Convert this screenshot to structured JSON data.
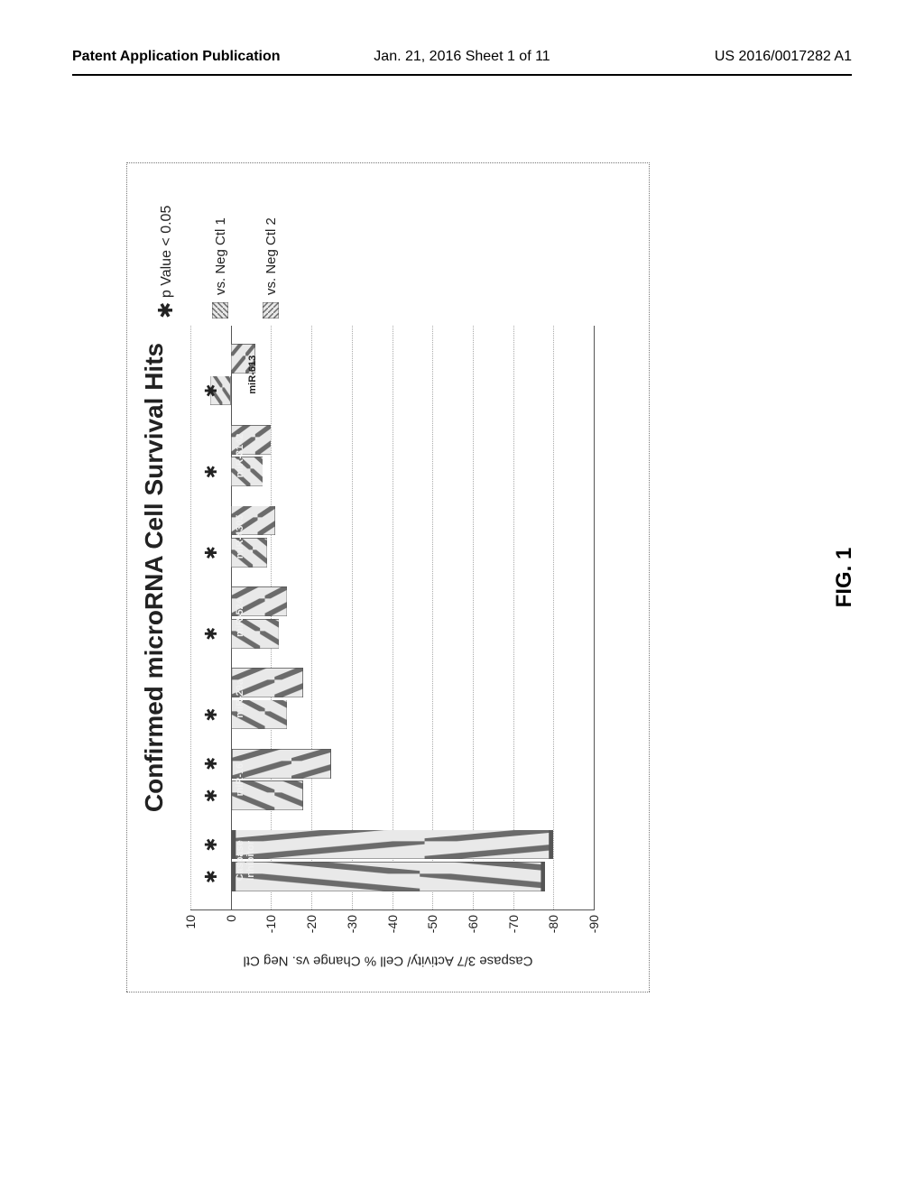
{
  "header": {
    "left": "Patent Application Publication",
    "center": "Jan. 21, 2016  Sheet 1 of 11",
    "right": "US 2016/0017282 A1"
  },
  "figure": {
    "caption": "FIG. 1",
    "chart": {
      "type": "bar",
      "title": "Confirmed microRNA Cell Survival Hits",
      "ylabel": "Caspase 3/7 Activity/ Cell % Change vs. Neg Ctl",
      "ylim": [
        -90,
        10
      ],
      "ytick_step": 10,
      "yticks": [
        10,
        0,
        -10,
        -20,
        -30,
        -40,
        -50,
        -60,
        -70,
        -80,
        -90
      ],
      "background_color": "#ffffff",
      "border": "1px dotted #777777",
      "grid_color": "#aaaaaa",
      "grid_style": "dotted",
      "axis_color": "#555555",
      "title_fontsize": 28,
      "label_fontsize": 15,
      "tick_fontsize": 14,
      "bar_group_width_pct": 11,
      "bar_width_pct_of_group": 46,
      "series": [
        {
          "key": "vs_neg_ctl_1",
          "label": "vs. Neg Ctl 1",
          "pattern": "hatch-ne",
          "color_fg": "#6b6b6b",
          "color_bg": "#e9e9e9"
        },
        {
          "key": "vs_neg_ctl_2",
          "label": "vs. Neg Ctl 2",
          "pattern": "hatch-nw",
          "color_fg": "#6b6b6b",
          "color_bg": "#e9e9e9"
        }
      ],
      "categories": [
        {
          "name": "Caspase Inhibitor",
          "display": "Caspase\nInhibitor",
          "values": [
            -78,
            -80
          ],
          "sig": [
            "*",
            "*"
          ],
          "label_inside": true
        },
        {
          "name": "miR-16",
          "display": "miR-16",
          "values": [
            -18,
            -25
          ],
          "sig": [
            "*",
            "*"
          ],
          "label_inside": true
        },
        {
          "name": "miR-29a",
          "display": "miR-29a",
          "values": [
            -14,
            -18
          ],
          "sig": [
            "*",
            ""
          ],
          "label_inside": true
        },
        {
          "name": "miR-524",
          "display": "miR-524",
          "values": [
            -12,
            -14
          ],
          "sig": [
            "*",
            ""
          ],
          "label_inside": true
        },
        {
          "name": "miR-4305",
          "display": "miR-4305",
          "values": [
            -9,
            -11
          ],
          "sig": [
            "*",
            ""
          ],
          "label_inside": true
        },
        {
          "name": "miR-3142",
          "display": "miR-3142",
          "values": [
            -8,
            -10
          ],
          "sig": [
            "*",
            ""
          ],
          "label_inside": true
        },
        {
          "name": "miR-613",
          "display": "miR-613",
          "values": [
            5,
            -6
          ],
          "sig": [
            "*",
            ""
          ],
          "label_inside": false
        }
      ],
      "significance": {
        "symbol": "*",
        "text": "p Value < 0.05",
        "fontsize": 16
      }
    }
  }
}
